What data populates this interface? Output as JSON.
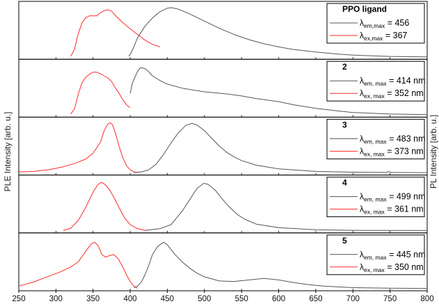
{
  "chart_data": {
    "type": "line",
    "layout": "5 vertically stacked panels with a shared x axis",
    "x_axis": {
      "range": [
        250,
        800
      ],
      "ticks": [
        250,
        300,
        350,
        400,
        450,
        500,
        550,
        600,
        650,
        700,
        750,
        800
      ],
      "label": ""
    },
    "y_axis_left_label": "PLE Intensity [arb. u.]",
    "y_axis_right_label": "PL Intensity [arb. u.]",
    "y_ticks_shown": false,
    "grid": false,
    "legend_placement": "top-right of each panel",
    "series_colors": {
      "em": "#555555",
      "ex": "#ff2a2a"
    },
    "panels": [
      {
        "id": "PPO ligand",
        "legend": [
          {
            "series": "em",
            "sub": "em,max",
            "value": "= 456"
          },
          {
            "series": "ex",
            "sub": "ex,max",
            "value": "= 367"
          }
        ],
        "em_points": [
          [
            398,
            0.02
          ],
          [
            400,
            0.05
          ],
          [
            405,
            0.2
          ],
          [
            410,
            0.38
          ],
          [
            420,
            0.6
          ],
          [
            430,
            0.76
          ],
          [
            440,
            0.88
          ],
          [
            450,
            0.95
          ],
          [
            456,
            0.96
          ],
          [
            465,
            0.93
          ],
          [
            480,
            0.84
          ],
          [
            500,
            0.7
          ],
          [
            520,
            0.56
          ],
          [
            540,
            0.44
          ],
          [
            560,
            0.34
          ],
          [
            580,
            0.26
          ],
          [
            600,
            0.2
          ],
          [
            620,
            0.15
          ],
          [
            650,
            0.1
          ],
          [
            680,
            0.06
          ],
          [
            700,
            0.04
          ],
          [
            750,
            0.015
          ],
          [
            800,
            0.005
          ]
        ],
        "ex_points": [
          [
            320,
            0.02
          ],
          [
            325,
            0.15
          ],
          [
            330,
            0.45
          ],
          [
            335,
            0.66
          ],
          [
            340,
            0.76
          ],
          [
            345,
            0.8
          ],
          [
            350,
            0.8
          ],
          [
            355,
            0.8
          ],
          [
            360,
            0.86
          ],
          [
            365,
            0.9
          ],
          [
            370,
            0.92
          ],
          [
            375,
            0.89
          ],
          [
            380,
            0.81
          ],
          [
            390,
            0.67
          ],
          [
            400,
            0.55
          ],
          [
            410,
            0.44
          ],
          [
            420,
            0.33
          ],
          [
            430,
            0.25
          ],
          [
            440,
            0.2
          ]
        ]
      },
      {
        "id": "2",
        "legend": [
          {
            "series": "em",
            "sub": "em, max",
            "value": "= 414 nm"
          },
          {
            "series": "ex",
            "sub": "ex, max",
            "value": "= 352 nm"
          }
        ],
        "em_points": [
          [
            400,
            0.42
          ],
          [
            403,
            0.62
          ],
          [
            406,
            0.72
          ],
          [
            410,
            0.85
          ],
          [
            414,
            0.92
          ],
          [
            420,
            0.9
          ],
          [
            425,
            0.84
          ],
          [
            430,
            0.76
          ],
          [
            440,
            0.67
          ],
          [
            450,
            0.6
          ],
          [
            470,
            0.52
          ],
          [
            500,
            0.45
          ],
          [
            530,
            0.41
          ],
          [
            550,
            0.37
          ],
          [
            570,
            0.32
          ],
          [
            600,
            0.26
          ],
          [
            620,
            0.2
          ],
          [
            650,
            0.13
          ],
          [
            680,
            0.08
          ],
          [
            700,
            0.05
          ],
          [
            750,
            0.02
          ],
          [
            800,
            0.01
          ]
        ],
        "ex_points": [
          [
            320,
            0.02
          ],
          [
            325,
            0.12
          ],
          [
            330,
            0.4
          ],
          [
            335,
            0.62
          ],
          [
            340,
            0.73
          ],
          [
            345,
            0.79
          ],
          [
            350,
            0.83
          ],
          [
            355,
            0.83
          ],
          [
            360,
            0.8
          ],
          [
            365,
            0.76
          ],
          [
            370,
            0.72
          ],
          [
            375,
            0.65
          ],
          [
            380,
            0.53
          ],
          [
            385,
            0.42
          ],
          [
            390,
            0.3
          ],
          [
            395,
            0.2
          ],
          [
            400,
            0.14
          ]
        ]
      },
      {
        "id": "3",
        "legend": [
          {
            "series": "em",
            "sub": "em, max",
            "value": "= 483 nm"
          },
          {
            "series": "ex",
            "sub": "ex, max",
            "value": "= 373 nm"
          }
        ],
        "em_points": [
          [
            405,
            0.01
          ],
          [
            415,
            0.02
          ],
          [
            425,
            0.06
          ],
          [
            435,
            0.17
          ],
          [
            445,
            0.36
          ],
          [
            455,
            0.58
          ],
          [
            465,
            0.78
          ],
          [
            475,
            0.92
          ],
          [
            483,
            0.96
          ],
          [
            490,
            0.93
          ],
          [
            500,
            0.82
          ],
          [
            510,
            0.67
          ],
          [
            520,
            0.52
          ],
          [
            530,
            0.4
          ],
          [
            540,
            0.31
          ],
          [
            550,
            0.24
          ],
          [
            570,
            0.15
          ],
          [
            600,
            0.08
          ],
          [
            650,
            0.03
          ],
          [
            700,
            0.015
          ],
          [
            745,
            0.01
          ],
          [
            748,
            0.03
          ],
          [
            751,
            0.01
          ],
          [
            800,
            0.005
          ]
        ],
        "ex_points": [
          [
            250,
            0.02
          ],
          [
            270,
            0.03
          ],
          [
            290,
            0.06
          ],
          [
            310,
            0.12
          ],
          [
            325,
            0.18
          ],
          [
            340,
            0.27
          ],
          [
            350,
            0.38
          ],
          [
            360,
            0.6
          ],
          [
            365,
            0.82
          ],
          [
            370,
            0.95
          ],
          [
            373,
            0.97
          ],
          [
            376,
            0.94
          ],
          [
            380,
            0.78
          ],
          [
            385,
            0.52
          ],
          [
            390,
            0.3
          ],
          [
            395,
            0.14
          ],
          [
            400,
            0.06
          ],
          [
            405,
            0.02
          ],
          [
            410,
            0.01
          ]
        ]
      },
      {
        "id": "4",
        "legend": [
          {
            "series": "em",
            "sub": "em, max",
            "value": "= 499 nm"
          },
          {
            "series": "ex",
            "sub": "ex, max",
            "value": "= 361 nm"
          }
        ],
        "em_points": [
          [
            420,
            0.01
          ],
          [
            440,
            0.04
          ],
          [
            455,
            0.12
          ],
          [
            470,
            0.38
          ],
          [
            480,
            0.6
          ],
          [
            490,
            0.82
          ],
          [
            499,
            0.92
          ],
          [
            505,
            0.9
          ],
          [
            515,
            0.78
          ],
          [
            525,
            0.6
          ],
          [
            535,
            0.44
          ],
          [
            545,
            0.31
          ],
          [
            555,
            0.22
          ],
          [
            570,
            0.13
          ],
          [
            600,
            0.06
          ],
          [
            650,
            0.02
          ],
          [
            700,
            0.01
          ],
          [
            800,
            0.005
          ]
        ],
        "ex_points": [
          [
            310,
            0.01
          ],
          [
            320,
            0.05
          ],
          [
            330,
            0.2
          ],
          [
            340,
            0.45
          ],
          [
            347,
            0.66
          ],
          [
            352,
            0.8
          ],
          [
            357,
            0.9
          ],
          [
            361,
            0.94
          ],
          [
            366,
            0.9
          ],
          [
            372,
            0.8
          ],
          [
            378,
            0.65
          ],
          [
            385,
            0.45
          ],
          [
            392,
            0.26
          ],
          [
            400,
            0.12
          ],
          [
            410,
            0.04
          ],
          [
            420,
            0.01
          ]
        ]
      },
      {
        "id": "5",
        "legend": [
          {
            "series": "em",
            "sub": "em, max",
            "value": "= 445 nm"
          },
          {
            "series": "ex",
            "sub": "ex, max",
            "value": "= 350 nm"
          }
        ],
        "em_points": [
          [
            405,
            0.02
          ],
          [
            410,
            0.05
          ],
          [
            415,
            0.13
          ],
          [
            420,
            0.27
          ],
          [
            425,
            0.45
          ],
          [
            430,
            0.66
          ],
          [
            437,
            0.82
          ],
          [
            445,
            0.9
          ],
          [
            450,
            0.85
          ],
          [
            460,
            0.67
          ],
          [
            470,
            0.52
          ],
          [
            480,
            0.4
          ],
          [
            490,
            0.3
          ],
          [
            500,
            0.23
          ],
          [
            520,
            0.15
          ],
          [
            540,
            0.14
          ],
          [
            560,
            0.17
          ],
          [
            580,
            0.2
          ],
          [
            600,
            0.17
          ],
          [
            620,
            0.12
          ],
          [
            640,
            0.08
          ],
          [
            660,
            0.05
          ],
          [
            700,
            0.02
          ],
          [
            750,
            0.01
          ],
          [
            800,
            0.005
          ]
        ],
        "ex_points": [
          [
            250,
            0.05
          ],
          [
            270,
            0.13
          ],
          [
            290,
            0.24
          ],
          [
            305,
            0.32
          ],
          [
            320,
            0.42
          ],
          [
            330,
            0.52
          ],
          [
            340,
            0.72
          ],
          [
            347,
            0.86
          ],
          [
            352,
            0.9
          ],
          [
            357,
            0.83
          ],
          [
            362,
            0.66
          ],
          [
            367,
            0.61
          ],
          [
            372,
            0.64
          ],
          [
            378,
            0.66
          ],
          [
            384,
            0.58
          ],
          [
            390,
            0.42
          ],
          [
            395,
            0.27
          ],
          [
            400,
            0.14
          ],
          [
            405,
            0.05
          ],
          [
            410,
            0.01
          ]
        ]
      }
    ]
  }
}
